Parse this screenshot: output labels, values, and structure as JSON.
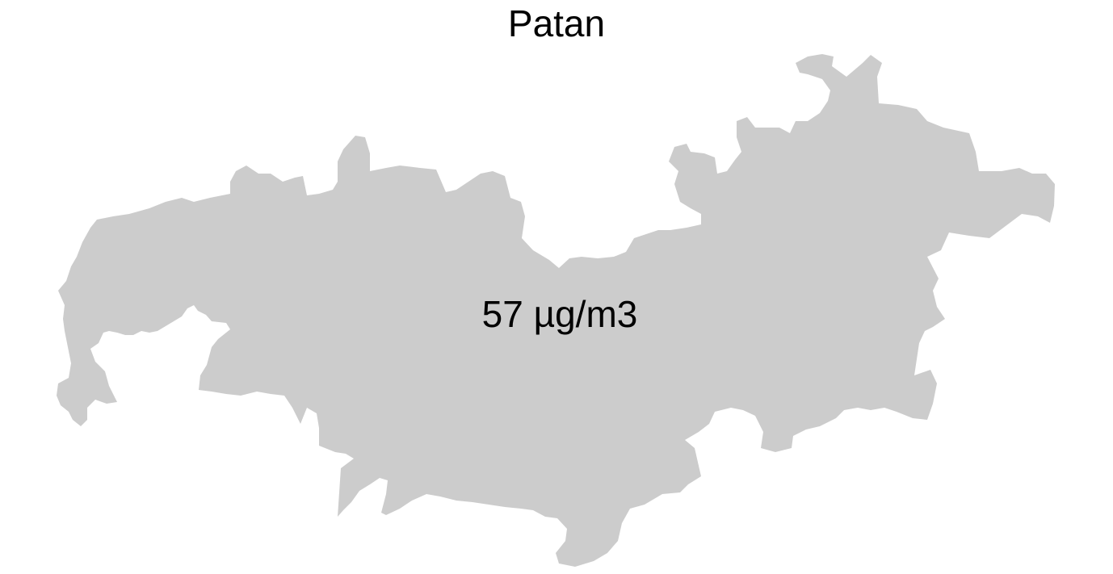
{
  "map": {
    "title": "Patan",
    "value_label": "57 µg/m3",
    "region_fill": "#cccccc"
  }
}
